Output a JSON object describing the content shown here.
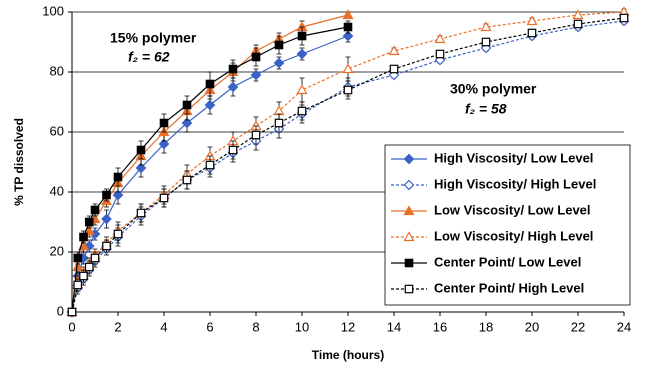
{
  "chart_data": {
    "type": "line",
    "x_label": "Time (hours)",
    "y_label": "% TP dissolved",
    "xlim": [
      0,
      24
    ],
    "xticks": [
      0,
      2,
      4,
      6,
      8,
      10,
      12,
      14,
      16,
      18,
      20,
      22,
      24
    ],
    "ylim": [
      0,
      100
    ],
    "yticks": [
      0,
      20,
      40,
      60,
      80,
      100
    ],
    "grid": true,
    "annotations": [
      "15% polymer",
      "f₂ = 62",
      "30% polymer",
      "f₂ = 58"
    ],
    "legend": "lower right",
    "series": [
      {
        "name": "High Viscosity/ Low Level",
        "color": "#3a62c4",
        "marker": "diamond",
        "filled": true,
        "dashed": false,
        "x": [
          0,
          0.25,
          0.5,
          0.75,
          1,
          1.5,
          2,
          3,
          4,
          5,
          6,
          7,
          8,
          9,
          10,
          12
        ],
        "values": [
          0,
          12,
          18,
          22,
          26,
          31,
          39,
          48,
          56,
          63,
          69,
          75,
          79,
          83,
          86,
          92
        ],
        "errors": [
          0,
          2,
          2,
          2,
          2,
          3,
          3,
          3,
          3,
          3,
          3,
          3,
          2,
          2,
          2,
          2
        ]
      },
      {
        "name": "High Viscosity/ High Level",
        "color": "#3a62c4",
        "marker": "diamond",
        "filled": false,
        "dashed": true,
        "x": [
          0,
          0.25,
          0.5,
          0.75,
          1,
          1.5,
          2,
          3,
          4,
          5,
          6,
          7,
          8,
          9,
          10,
          12,
          14,
          16,
          18,
          20,
          22,
          24
        ],
        "values": [
          0,
          8,
          11,
          14,
          17,
          21,
          25,
          32,
          38,
          44,
          48,
          53,
          57,
          61,
          66,
          75,
          79,
          84,
          88,
          92,
          95,
          97
        ],
        "errors": [
          0,
          2,
          2,
          2,
          2,
          2,
          3,
          3,
          3,
          3,
          3,
          3,
          3,
          3,
          3,
          3,
          1,
          1,
          1,
          1,
          1,
          1
        ]
      },
      {
        "name": "Low Viscosity/ Low Level",
        "color": "#e8702a",
        "marker": "triangle",
        "filled": true,
        "dashed": false,
        "x": [
          0,
          0.25,
          0.5,
          0.75,
          1,
          1.5,
          2,
          3,
          4,
          5,
          6,
          7,
          8,
          9,
          10,
          12
        ],
        "values": [
          0,
          15,
          22,
          27,
          31,
          37,
          43,
          52,
          60,
          67,
          74,
          80,
          87,
          91,
          95,
          99
        ],
        "errors": [
          0,
          2,
          2,
          2,
          2,
          2,
          3,
          3,
          3,
          3,
          3,
          3,
          2,
          2,
          2,
          1
        ]
      },
      {
        "name": "Low Viscosity/ High Level",
        "color": "#e8702a",
        "marker": "triangle",
        "filled": false,
        "dashed": true,
        "x": [
          0,
          0.25,
          0.5,
          0.75,
          1,
          1.5,
          2,
          3,
          4,
          5,
          6,
          7,
          8,
          9,
          10,
          12,
          14,
          16,
          18,
          20,
          22,
          24
        ],
        "values": [
          0,
          10,
          13,
          16,
          19,
          23,
          27,
          33,
          39,
          46,
          52,
          57,
          62,
          67,
          74,
          81,
          87,
          91,
          95,
          97,
          99,
          100
        ],
        "errors": [
          0,
          2,
          2,
          2,
          2,
          2,
          3,
          3,
          3,
          3,
          3,
          3,
          3,
          3,
          4,
          4,
          1,
          1,
          1,
          1,
          1,
          1
        ]
      },
      {
        "name": "Center Point/ Low Level",
        "color": "#000000",
        "marker": "square",
        "filled": true,
        "dashed": false,
        "x": [
          0,
          0.25,
          0.5,
          0.75,
          1,
          1.5,
          2,
          3,
          4,
          5,
          6,
          7,
          8,
          9,
          10,
          12
        ],
        "values": [
          0,
          18,
          25,
          30,
          34,
          39,
          45,
          54,
          63,
          69,
          76,
          81,
          85,
          89,
          92,
          95
        ],
        "errors": [
          0,
          2,
          2,
          2,
          2,
          2,
          3,
          3,
          3,
          3,
          4,
          3,
          3,
          3,
          3,
          2
        ]
      },
      {
        "name": "Center Point/ High Level",
        "color": "#000000",
        "marker": "square",
        "filled": false,
        "dashed": true,
        "x": [
          0,
          0.25,
          0.5,
          0.75,
          1,
          1.5,
          2,
          3,
          4,
          5,
          6,
          7,
          8,
          9,
          10,
          12,
          14,
          16,
          18,
          20,
          22,
          24
        ],
        "values": [
          0,
          9,
          12,
          15,
          18,
          22,
          26,
          33,
          38,
          44,
          49,
          54,
          59,
          63,
          67,
          74,
          81,
          86,
          90,
          93,
          96,
          98
        ],
        "errors": [
          0,
          2,
          2,
          2,
          2,
          2,
          3,
          3,
          3,
          3,
          3,
          3,
          3,
          3,
          3,
          3,
          1,
          1,
          1,
          1,
          1,
          1
        ]
      }
    ]
  }
}
